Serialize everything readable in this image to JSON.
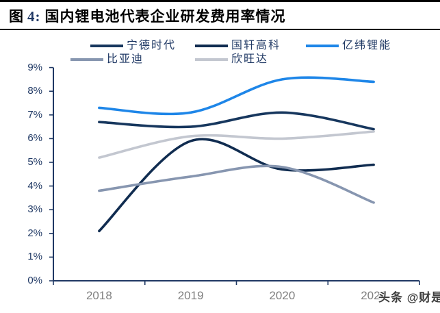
{
  "figure": {
    "label_prefix": "图",
    "label_number": "4:",
    "title": "国内锂电池代表企业研发费用率情况"
  },
  "watermark": "头条 @财是",
  "colors": {
    "axis": "#1F3864",
    "figure_number": "#1F3864",
    "x_label": "#7F7F7F",
    "watermark_text": "#3F3F3F",
    "rule": "#000000"
  },
  "chart_data": {
    "type": "line",
    "smooth": true,
    "grid": false,
    "legend_position": "top",
    "categories": [
      "2018",
      "2019",
      "2020",
      "2021"
    ],
    "series": [
      {
        "name": "宁德时代",
        "color": "#17375E",
        "values": [
          6.7,
          6.5,
          7.1,
          6.4
        ]
      },
      {
        "name": "国轩高科",
        "color": "#102C50",
        "values": [
          2.1,
          5.9,
          4.7,
          4.9
        ]
      },
      {
        "name": "亿纬锂能",
        "color": "#1E86E8",
        "values": [
          7.3,
          7.1,
          8.5,
          8.4
        ]
      },
      {
        "name": "比亚迪",
        "color": "#8796B0",
        "values": [
          3.8,
          4.4,
          4.8,
          3.3
        ]
      },
      {
        "name": "欣旺达",
        "color": "#C3C7D0",
        "values": [
          5.2,
          6.1,
          6.0,
          6.3
        ]
      }
    ],
    "ylim": [
      0,
      9
    ],
    "y_tick_step": 1,
    "y_tick_labels": [
      "0%",
      "1%",
      "2%",
      "3%",
      "4%",
      "5%",
      "6%",
      "7%",
      "8%",
      "9%"
    ],
    "legend_rows": [
      [
        "宁德时代",
        "国轩高科",
        "亿纬锂能"
      ],
      [
        "比亚迪",
        "欣旺达"
      ]
    ]
  }
}
